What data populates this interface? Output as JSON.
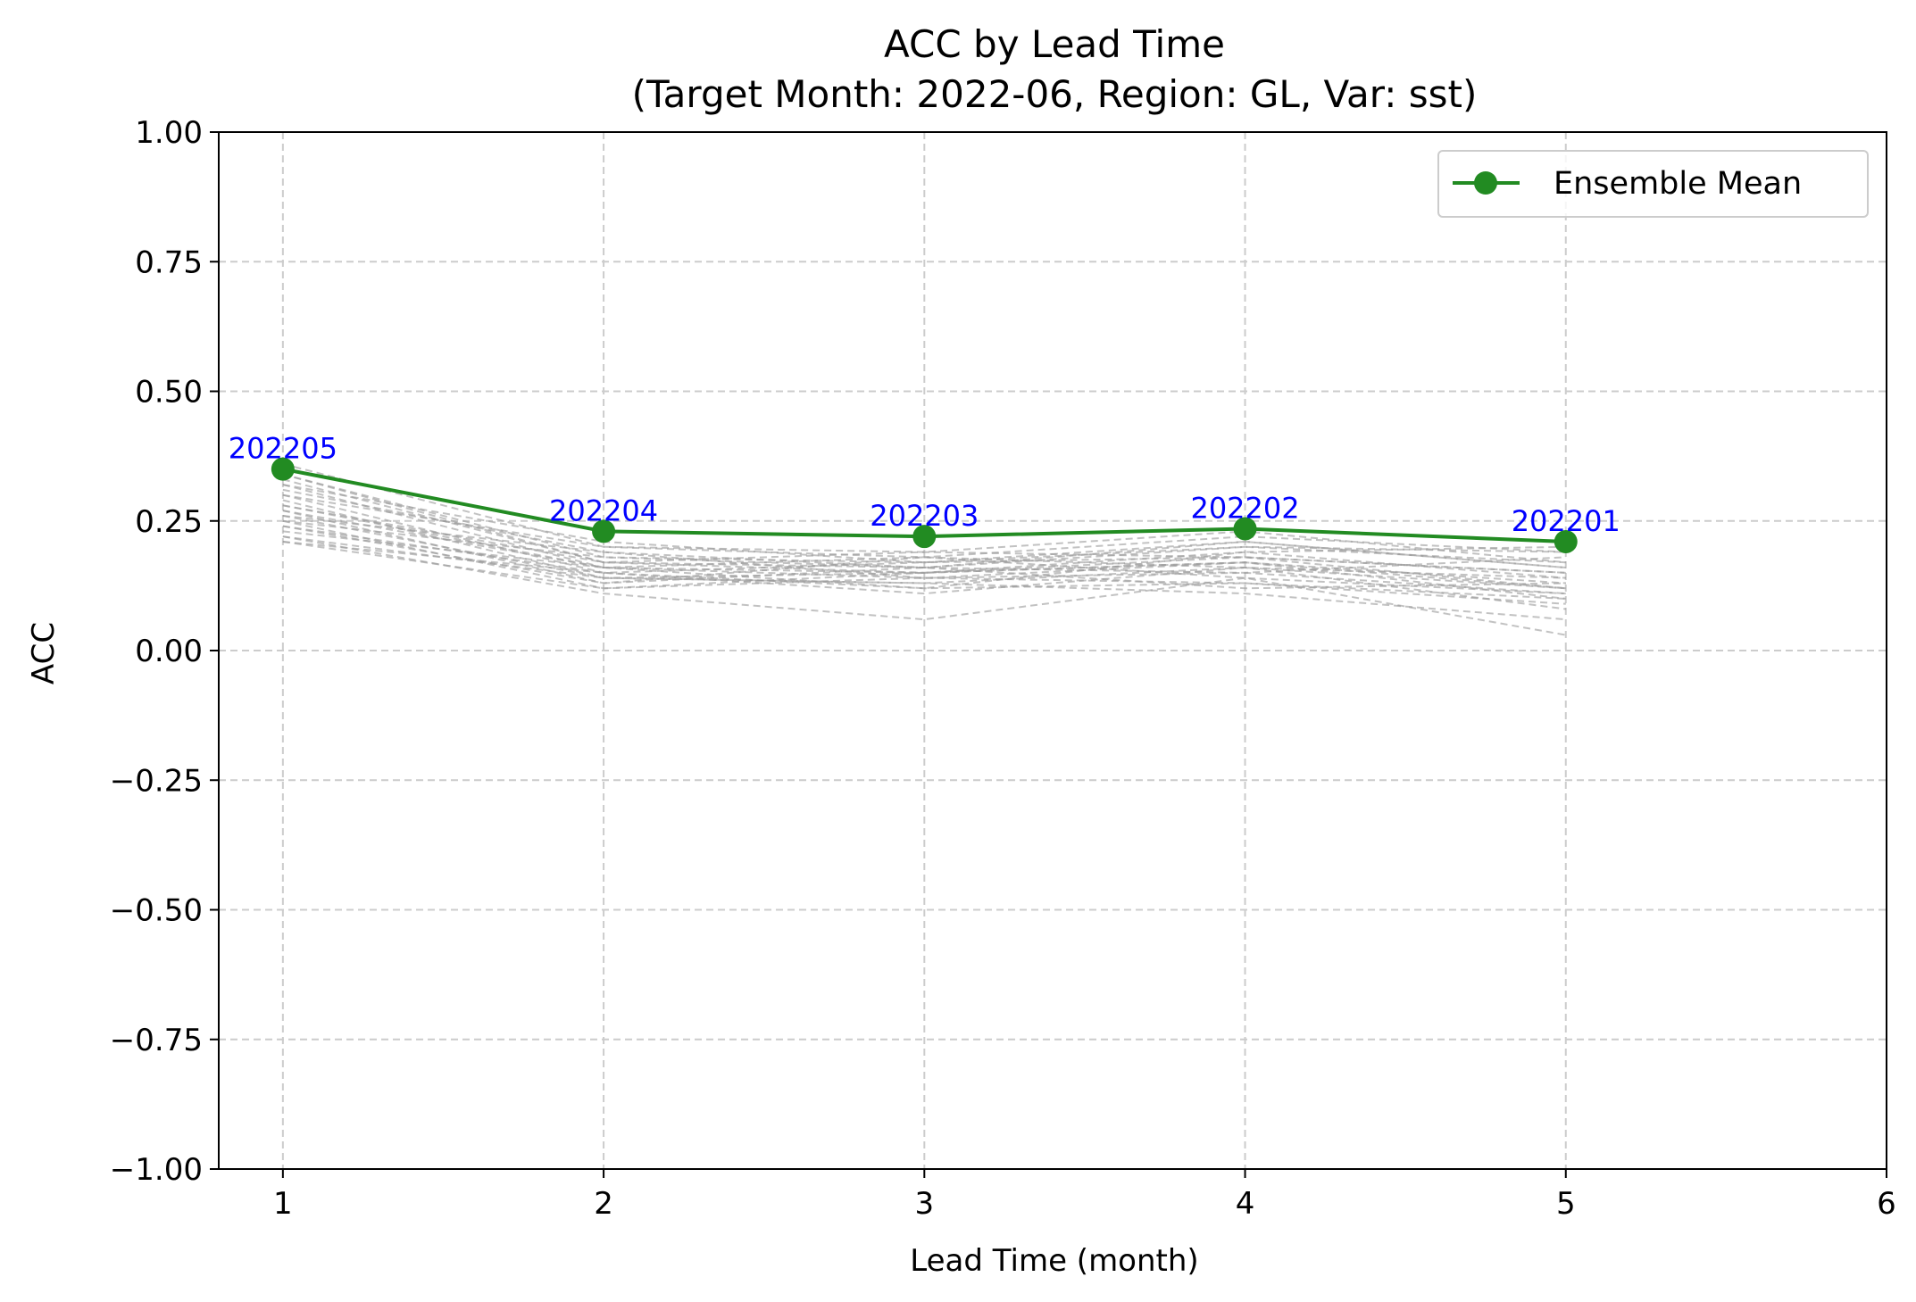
{
  "chart_data": {
    "type": "line",
    "title": "ACC by Lead Time",
    "subtitle": "(Target Month: 2022-06, Region: GL, Var: sst)",
    "xlabel": "Lead Time (month)",
    "ylabel": "ACC",
    "xlim": [
      0.8,
      6.0
    ],
    "ylim": [
      -1.0,
      1.0
    ],
    "xticks": [
      1,
      2,
      3,
      4,
      5,
      6
    ],
    "xtick_labels": [
      "1",
      "2",
      "3",
      "4",
      "5",
      "6"
    ],
    "yticks": [
      -1.0,
      -0.75,
      -0.5,
      -0.25,
      0.0,
      0.25,
      0.5,
      0.75,
      1.0
    ],
    "ytick_labels": [
      "−1.00",
      "−0.75",
      "−0.50",
      "−0.25",
      "0.00",
      "0.25",
      "0.50",
      "0.75",
      "1.00"
    ],
    "grid": true,
    "legend_position": "top-right",
    "colors": {
      "ensemble_mean": "#228b22",
      "members": "#999999",
      "annotations": "#0000ff",
      "grid": "#cccccc"
    },
    "series": [
      {
        "name": "Ensemble Mean",
        "x": [
          1,
          2,
          3,
          4,
          5
        ],
        "y": [
          0.35,
          0.23,
          0.22,
          0.235,
          0.21
        ]
      }
    ],
    "annotations": [
      {
        "text": "202205",
        "x": 1,
        "y": 0.35
      },
      {
        "text": "202204",
        "x": 2,
        "y": 0.23
      },
      {
        "text": "202203",
        "x": 3,
        "y": 0.22
      },
      {
        "text": "202202",
        "x": 4,
        "y": 0.235
      },
      {
        "text": "202201",
        "x": 5,
        "y": 0.21
      }
    ],
    "members": [
      {
        "x": [
          1,
          2,
          3,
          4,
          5
        ],
        "y": [
          0.36,
          0.2,
          0.18,
          0.22,
          0.19
        ]
      },
      {
        "x": [
          1,
          2,
          3,
          4,
          5
        ],
        "y": [
          0.34,
          0.18,
          0.16,
          0.2,
          0.17
        ]
      },
      {
        "x": [
          1,
          2,
          3,
          4,
          5
        ],
        "y": [
          0.33,
          0.17,
          0.19,
          0.18,
          0.15
        ]
      },
      {
        "x": [
          1,
          2,
          3,
          4,
          5
        ],
        "y": [
          0.32,
          0.16,
          0.15,
          0.19,
          0.2
        ]
      },
      {
        "x": [
          1,
          2,
          3,
          4,
          5
        ],
        "y": [
          0.31,
          0.19,
          0.14,
          0.17,
          0.13
        ]
      },
      {
        "x": [
          1,
          2,
          3,
          4,
          5
        ],
        "y": [
          0.3,
          0.15,
          0.17,
          0.21,
          0.16
        ]
      },
      {
        "x": [
          1,
          2,
          3,
          4,
          5
        ],
        "y": [
          0.29,
          0.14,
          0.13,
          0.16,
          0.12
        ]
      },
      {
        "x": [
          1,
          2,
          3,
          4,
          5
        ],
        "y": [
          0.28,
          0.17,
          0.16,
          0.15,
          0.18
        ]
      },
      {
        "x": [
          1,
          2,
          3,
          4,
          5
        ],
        "y": [
          0.27,
          0.13,
          0.18,
          0.14,
          0.11
        ]
      },
      {
        "x": [
          1,
          2,
          3,
          4,
          5
        ],
        "y": [
          0.27,
          0.16,
          0.12,
          0.19,
          0.14
        ]
      },
      {
        "x": [
          1,
          2,
          3,
          4,
          5
        ],
        "y": [
          0.26,
          0.14,
          0.15,
          0.17,
          0.1
        ]
      },
      {
        "x": [
          1,
          2,
          3,
          4,
          5
        ],
        "y": [
          0.25,
          0.12,
          0.14,
          0.13,
          0.09
        ]
      },
      {
        "x": [
          1,
          2,
          3,
          4,
          5
        ],
        "y": [
          0.25,
          0.18,
          0.17,
          0.18,
          0.15
        ]
      },
      {
        "x": [
          1,
          2,
          3,
          4,
          5
        ],
        "y": [
          0.24,
          0.15,
          0.11,
          0.16,
          0.08
        ]
      },
      {
        "x": [
          1,
          2,
          3,
          4,
          5
        ],
        "y": [
          0.24,
          0.13,
          0.16,
          0.12,
          0.13
        ]
      },
      {
        "x": [
          1,
          2,
          3,
          4,
          5
        ],
        "y": [
          0.23,
          0.16,
          0.14,
          0.15,
          0.11
        ]
      },
      {
        "x": [
          1,
          2,
          3,
          4,
          5
        ],
        "y": [
          0.22,
          0.11,
          0.06,
          0.14,
          0.03
        ]
      },
      {
        "x": [
          1,
          2,
          3,
          4,
          5
        ],
        "y": [
          0.22,
          0.14,
          0.13,
          0.11,
          0.06
        ]
      },
      {
        "x": [
          1,
          2,
          3,
          4,
          5
        ],
        "y": [
          0.21,
          0.12,
          0.15,
          0.17,
          0.12
        ]
      },
      {
        "x": [
          1,
          2,
          3,
          4,
          5
        ],
        "y": [
          0.21,
          0.15,
          0.12,
          0.13,
          0.1
        ]
      },
      {
        "x": [
          1,
          2,
          3,
          4,
          5
        ],
        "y": [
          0.3,
          0.2,
          0.19,
          0.23,
          0.17
        ]
      },
      {
        "x": [
          1,
          2,
          3,
          4,
          5
        ],
        "y": [
          0.32,
          0.21,
          0.17,
          0.2,
          0.19
        ]
      },
      {
        "x": [
          1,
          2,
          3,
          4,
          5
        ],
        "y": [
          0.28,
          0.16,
          0.18,
          0.16,
          0.14
        ]
      },
      {
        "x": [
          1,
          2,
          3,
          4,
          5
        ],
        "y": [
          0.26,
          0.19,
          0.16,
          0.21,
          0.16
        ]
      },
      {
        "x": [
          1,
          2,
          3,
          4,
          5
        ],
        "y": [
          0.34,
          0.17,
          0.15,
          0.18,
          0.12
        ]
      }
    ]
  }
}
